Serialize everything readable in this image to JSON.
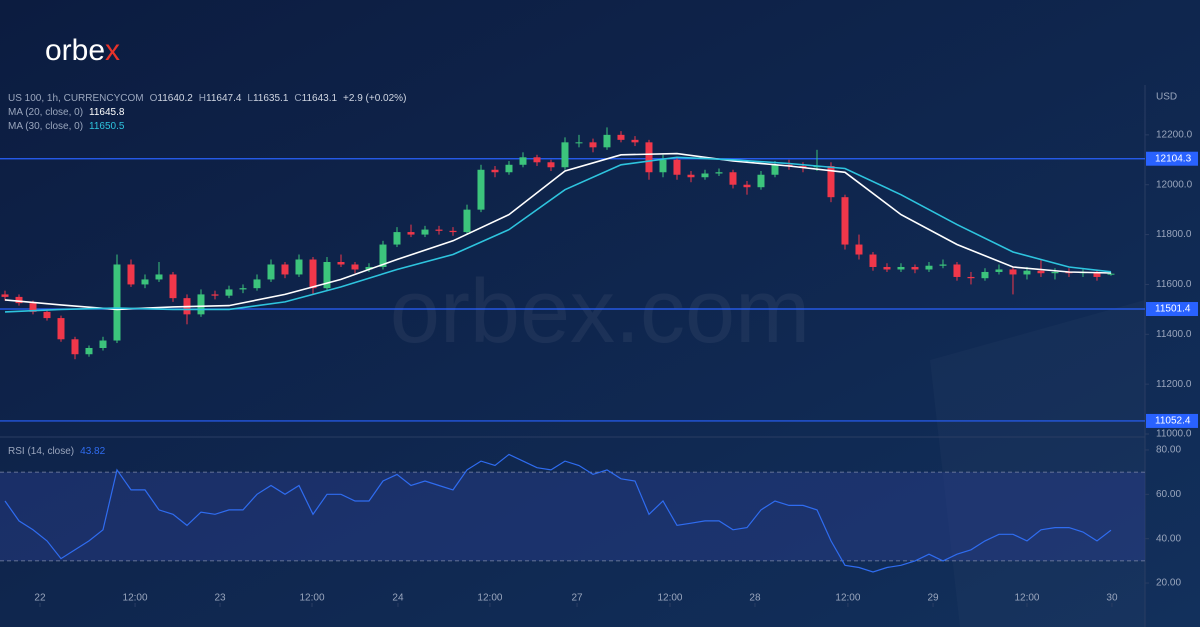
{
  "chart_data": {
    "type": "candlestick",
    "logo": "orbe",
    "logo_accent": "x",
    "watermark": "orbex.com",
    "symbol": "US 100, 1h, CURRENCYCOM",
    "ohlc_letters": [
      "O",
      "H",
      "L",
      "C"
    ],
    "change": "+2.9 (+0.02%)",
    "currency": "USD",
    "up_color": "#3cc47c",
    "down_color": "#f0374a",
    "candles": [
      [
        11560,
        11575,
        11535,
        11550
      ],
      [
        11550,
        11560,
        11515,
        11525
      ],
      [
        11525,
        11535,
        11480,
        11490
      ],
      [
        11490,
        11500,
        11455,
        11465
      ],
      [
        11465,
        11475,
        11370,
        11380
      ],
      [
        11380,
        11390,
        11300,
        11320
      ],
      [
        11320,
        11355,
        11310,
        11345
      ],
      [
        11345,
        11390,
        11335,
        11375
      ],
      [
        11375,
        11720,
        11365,
        11680
      ],
      [
        11680,
        11700,
        11590,
        11600
      ],
      [
        11600,
        11640,
        11585,
        11620
      ],
      [
        11620,
        11690,
        11610,
        11640
      ],
      [
        11640,
        11650,
        11530,
        11545
      ],
      [
        11545,
        11560,
        11440,
        11480
      ],
      [
        11480,
        11580,
        11470,
        11560
      ],
      [
        11560,
        11575,
        11540,
        11555
      ],
      [
        11555,
        11595,
        11545,
        11580
      ],
      [
        11580,
        11600,
        11565,
        11585
      ],
      [
        11585,
        11640,
        11575,
        11620
      ],
      [
        11620,
        11700,
        11610,
        11680
      ],
      [
        11680,
        11690,
        11625,
        11640
      ],
      [
        11640,
        11720,
        11630,
        11700
      ],
      [
        11700,
        11710,
        11560,
        11585
      ],
      [
        11585,
        11710,
        11575,
        11690
      ],
      [
        11690,
        11720,
        11670,
        11680
      ],
      [
        11680,
        11690,
        11645,
        11660
      ],
      [
        11660,
        11685,
        11650,
        11670
      ],
      [
        11670,
        11775,
        11660,
        11760
      ],
      [
        11760,
        11830,
        11750,
        11810
      ],
      [
        11810,
        11840,
        11790,
        11800
      ],
      [
        11800,
        11835,
        11790,
        11820
      ],
      [
        11820,
        11835,
        11800,
        11815
      ],
      [
        11815,
        11830,
        11795,
        11810
      ],
      [
        11810,
        11920,
        11800,
        11900
      ],
      [
        11900,
        12080,
        11890,
        12060
      ],
      [
        12060,
        12075,
        12030,
        12050
      ],
      [
        12050,
        12095,
        12040,
        12080
      ],
      [
        12080,
        12130,
        12070,
        12110
      ],
      [
        12110,
        12120,
        12075,
        12090
      ],
      [
        12090,
        12100,
        12055,
        12070
      ],
      [
        12070,
        12190,
        12060,
        12170
      ],
      [
        12170,
        12200,
        12150,
        12170
      ],
      [
        12170,
        12185,
        12130,
        12150
      ],
      [
        12150,
        12230,
        12140,
        12200
      ],
      [
        12200,
        12215,
        12170,
        12180
      ],
      [
        12180,
        12195,
        12155,
        12170
      ],
      [
        12170,
        12180,
        12020,
        12050
      ],
      [
        12050,
        12120,
        12030,
        12100
      ],
      [
        12100,
        12110,
        12020,
        12040
      ],
      [
        12040,
        12055,
        12010,
        12030
      ],
      [
        12030,
        12060,
        12020,
        12045
      ],
      [
        12045,
        12065,
        12035,
        12050
      ],
      [
        12050,
        12060,
        11985,
        12000
      ],
      [
        12000,
        12015,
        11960,
        11990
      ],
      [
        11990,
        12055,
        11980,
        12040
      ],
      [
        12040,
        12095,
        12030,
        12080
      ],
      [
        12080,
        12100,
        12060,
        12075
      ],
      [
        12075,
        12090,
        12050,
        12070
      ],
      [
        12070,
        12140,
        12055,
        12075
      ],
      [
        12075,
        12090,
        11930,
        11950
      ],
      [
        11950,
        11960,
        11740,
        11760
      ],
      [
        11760,
        11800,
        11700,
        11720
      ],
      [
        11720,
        11730,
        11655,
        11670
      ],
      [
        11670,
        11685,
        11650,
        11660
      ],
      [
        11660,
        11685,
        11650,
        11670
      ],
      [
        11670,
        11680,
        11645,
        11660
      ],
      [
        11660,
        11690,
        11650,
        11675
      ],
      [
        11675,
        11700,
        11665,
        11680
      ],
      [
        11680,
        11690,
        11615,
        11630
      ],
      [
        11630,
        11650,
        11600,
        11625
      ],
      [
        11625,
        11665,
        11615,
        11650
      ],
      [
        11650,
        11680,
        11640,
        11660
      ],
      [
        11660,
        11670,
        11560,
        11640
      ],
      [
        11640,
        11670,
        11620,
        11655
      ],
      [
        11655,
        11700,
        11630,
        11645
      ],
      [
        11645,
        11665,
        11620,
        11650
      ],
      [
        11650,
        11665,
        11630,
        11645
      ],
      [
        11645,
        11660,
        11630,
        11650
      ],
      [
        11650,
        11660,
        11615,
        11630
      ],
      [
        11640.2,
        11647.4,
        11635.1,
        11643.1
      ]
    ],
    "ma": [
      {
        "name": "MA (20, close, 0)",
        "color": "#ffffff",
        "x": [
          0,
          4,
          8,
          12,
          16,
          20,
          24,
          28,
          32,
          36,
          40,
          44,
          48,
          52,
          56,
          60,
          64,
          68,
          72,
          76,
          79
        ],
        "values": [
          11538,
          11518,
          11500,
          11510,
          11515,
          11560,
          11620,
          11700,
          11775,
          11880,
          12055,
          12120,
          12125,
          12095,
          12075,
          12050,
          11880,
          11760,
          11670,
          11650,
          11645.8
        ]
      },
      {
        "name": "MA (30, close, 0)",
        "color": "#2ec4de",
        "x": [
          0,
          4,
          8,
          12,
          16,
          20,
          24,
          28,
          32,
          36,
          40,
          44,
          48,
          52,
          56,
          60,
          64,
          68,
          72,
          76,
          79
        ],
        "values": [
          11490,
          11500,
          11505,
          11500,
          11500,
          11530,
          11590,
          11660,
          11720,
          11820,
          11980,
          12080,
          12110,
          12100,
          12085,
          12065,
          11960,
          11840,
          11730,
          11670,
          11650.5
        ]
      }
    ],
    "levels": {
      "values": [
        12104.3,
        11501.4,
        11052.4
      ],
      "color": "#2962ff"
    },
    "xlim": [
      -0.357,
      81.43
    ],
    "xticks": [
      {
        "value": 2.5,
        "label": "22"
      },
      {
        "value": 9.29,
        "label": "12:00"
      },
      {
        "value": 15.36,
        "label": "23"
      },
      {
        "value": 21.93,
        "label": "12:00"
      },
      {
        "value": 28.07,
        "label": "24"
      },
      {
        "value": 34.64,
        "label": "12:00"
      },
      {
        "value": 40.86,
        "label": "27"
      },
      {
        "value": 47.5,
        "label": "12:00"
      },
      {
        "value": 53.57,
        "label": "28"
      },
      {
        "value": 60.21,
        "label": "12:00"
      },
      {
        "value": 66.29,
        "label": "29"
      },
      {
        "value": 73,
        "label": "12:00"
      },
      {
        "value": 79.07,
        "label": "30"
      }
    ],
    "ylim": [
      10988,
      12400
    ],
    "yticks": [
      {
        "value": 12200,
        "label": "12200.0"
      },
      {
        "value": 12000,
        "label": "12000.0"
      },
      {
        "value": 11800,
        "label": "11800.0"
      },
      {
        "value": 11600,
        "label": "11600.0"
      },
      {
        "value": 11400,
        "label": "11400.0"
      },
      {
        "value": 11200,
        "label": "11200.0"
      },
      {
        "value": 11000,
        "label": "11000.0"
      }
    ],
    "rsi": {
      "name": "RSI (14, close)",
      "color": "#2f6cf0",
      "ylim": [
        11,
        83.6
      ],
      "bands": [
        30,
        70
      ],
      "yticks": [
        {
          "value": 80,
          "label": "80.00"
        },
        {
          "value": 60,
          "label": "60.00"
        },
        {
          "value": 40,
          "label": "40.00"
        },
        {
          "value": 20,
          "label": "20.00"
        }
      ],
      "values": [
        57,
        48,
        44,
        39,
        31,
        35,
        39,
        44,
        71,
        62,
        62,
        53,
        51,
        46,
        52,
        51,
        53,
        53,
        60,
        64,
        60,
        64,
        51,
        60,
        60,
        57,
        57,
        66,
        69,
        64,
        66,
        64,
        62,
        71,
        75,
        73,
        78,
        75,
        72,
        71,
        75,
        73,
        69,
        71,
        67,
        66,
        51,
        57,
        46,
        47,
        48,
        48,
        44,
        45,
        53,
        57,
        55,
        55,
        53,
        39,
        28,
        27,
        25,
        27,
        28,
        30,
        33,
        30,
        33,
        35,
        39,
        42,
        42,
        39,
        44,
        45,
        45,
        43,
        39,
        43.82
      ]
    }
  }
}
